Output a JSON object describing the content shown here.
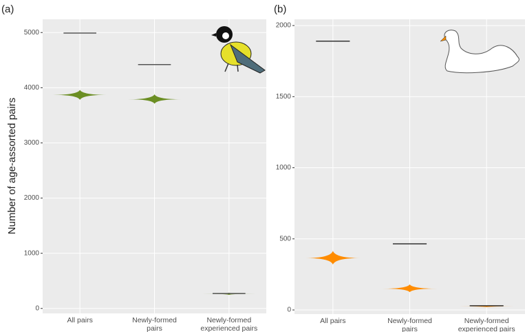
{
  "chart_data": [
    {
      "type": "violin",
      "panel_label": "(a)",
      "ylabel": "Number of age-assorted pairs",
      "categories": [
        "All pairs",
        "Newly-formed\npairs",
        "Newly-formed\nexperienced pairs"
      ],
      "violin_low": [
        3780,
        3710,
        245
      ],
      "violin_mode": [
        3870,
        3790,
        265
      ],
      "violin_high": [
        3960,
        3880,
        285
      ],
      "observed": [
        4990,
        4420,
        270
      ],
      "color": "#6b8e23",
      "observed_color": "#555555",
      "ylim": [
        -90,
        5240
      ],
      "yticks": [
        0,
        1000,
        2000,
        3000,
        4000,
        5000
      ],
      "grid": true
    },
    {
      "type": "violin",
      "panel_label": "(b)",
      "categories": [
        "All pairs",
        "Newly-formed\npairs",
        "Newly-formed\nexperienced pairs"
      ],
      "violin_low": [
        320,
        125,
        20
      ],
      "violin_mode": [
        365,
        150,
        25
      ],
      "violin_high": [
        415,
        180,
        30
      ],
      "observed": [
        1890,
        465,
        30
      ],
      "color": "#ff8c00",
      "observed_color": "#333333",
      "ylim": [
        -29,
        2044
      ],
      "yticks": [
        0,
        500,
        1000,
        1500,
        2000
      ],
      "grid": true
    }
  ]
}
